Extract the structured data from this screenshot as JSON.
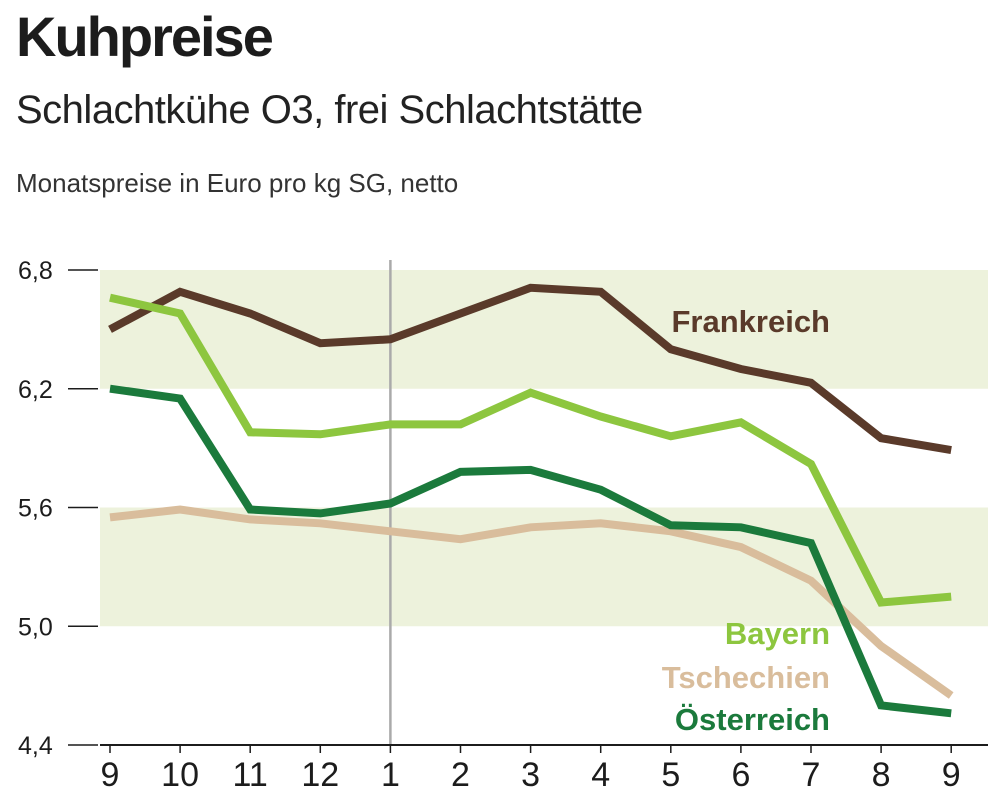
{
  "chart_data": {
    "type": "line",
    "title": "Kuhpreise",
    "subtitle": "Schlachtkühe O3, frei Schlachtstätte",
    "ylabel": "Monatspreise in Euro pro kg SG, netto",
    "categories": [
      "9",
      "10",
      "11",
      "12",
      "1",
      "2",
      "3",
      "4",
      "5",
      "6",
      "7",
      "8",
      "9"
    ],
    "ylim": [
      4.4,
      6.8
    ],
    "yticks": [
      "6,8",
      "6,2",
      "5,6",
      "5,0",
      "4,4"
    ],
    "yticks_values": [
      6.8,
      6.2,
      5.6,
      5.0,
      4.4
    ],
    "bands": [
      [
        6.2,
        6.8
      ],
      [
        5.0,
        5.6
      ]
    ],
    "divider_category": "1",
    "series": [
      {
        "name": "Frankreich",
        "color": "#5a3a2a",
        "values": [
          6.5,
          6.69,
          6.58,
          6.43,
          6.45,
          6.58,
          6.71,
          6.69,
          6.4,
          6.3,
          6.23,
          5.95,
          5.89
        ]
      },
      {
        "name": "Bayern",
        "color": "#8dc63f",
        "values": [
          6.66,
          6.58,
          5.98,
          5.97,
          6.02,
          6.02,
          6.18,
          6.06,
          5.96,
          6.03,
          5.82,
          5.12,
          5.15
        ]
      },
      {
        "name": "Tschechien",
        "color": "#d9bd9c",
        "values": [
          5.55,
          5.59,
          5.54,
          5.52,
          5.48,
          5.44,
          5.5,
          5.52,
          5.48,
          5.4,
          5.23,
          4.9,
          4.65
        ]
      },
      {
        "name": "Österreich",
        "color": "#1b7a3c",
        "values": [
          6.2,
          6.15,
          5.59,
          5.57,
          5.62,
          5.78,
          5.79,
          5.69,
          5.51,
          5.5,
          5.42,
          4.6,
          4.56
        ]
      }
    ]
  }
}
